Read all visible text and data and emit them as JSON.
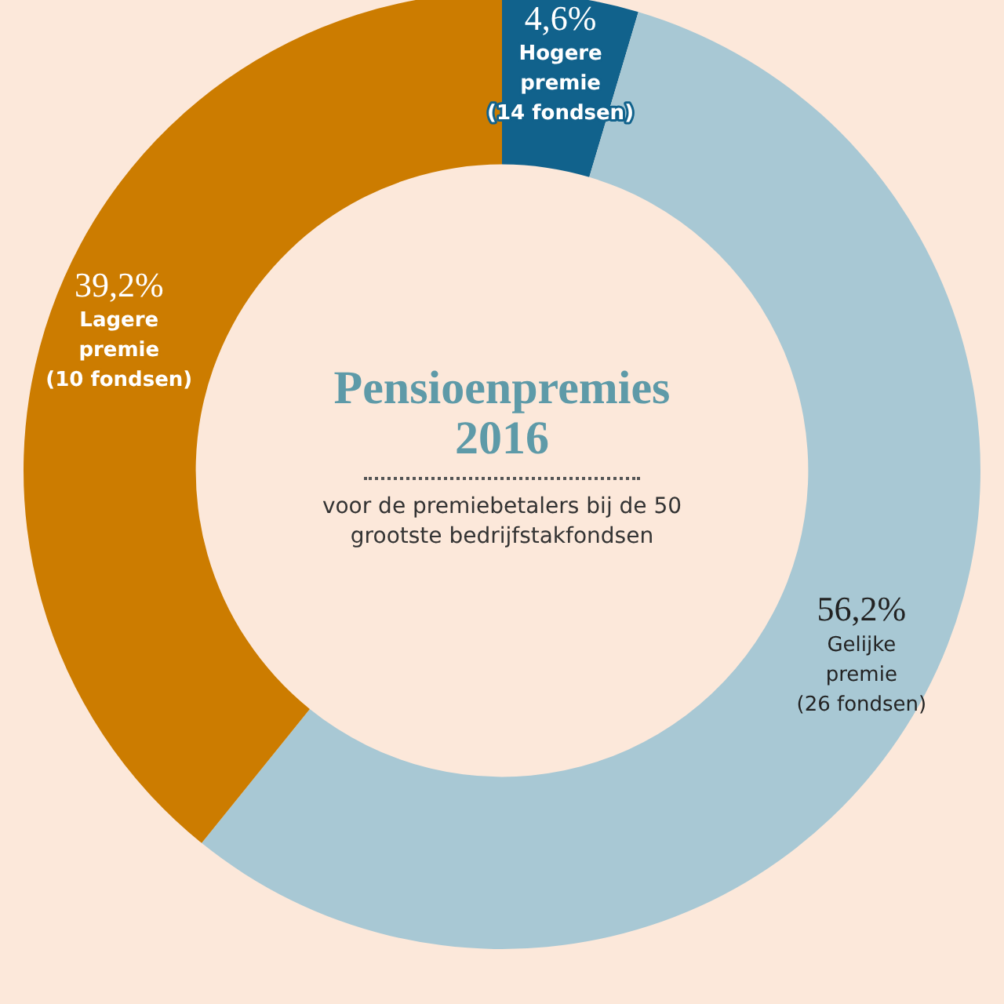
{
  "chart_data": {
    "type": "donut",
    "title": "Pensioenpremies 2016",
    "subtitle": "voor de premiebetalers bij de 50 grootste bedrijfstakfondsen",
    "categories": [
      "Hogere premie (14 fondsen)",
      "Gelijke premie (26 fondsen)",
      "Lagere premie (10 fondsen)"
    ],
    "values": [
      4.6,
      56.2,
      39.2
    ],
    "value_labels": [
      "4,6%",
      "56,2%",
      "39,2%"
    ],
    "colors": [
      "#11628c",
      "#a8c8d4",
      "#cc7c00"
    ]
  }
}
